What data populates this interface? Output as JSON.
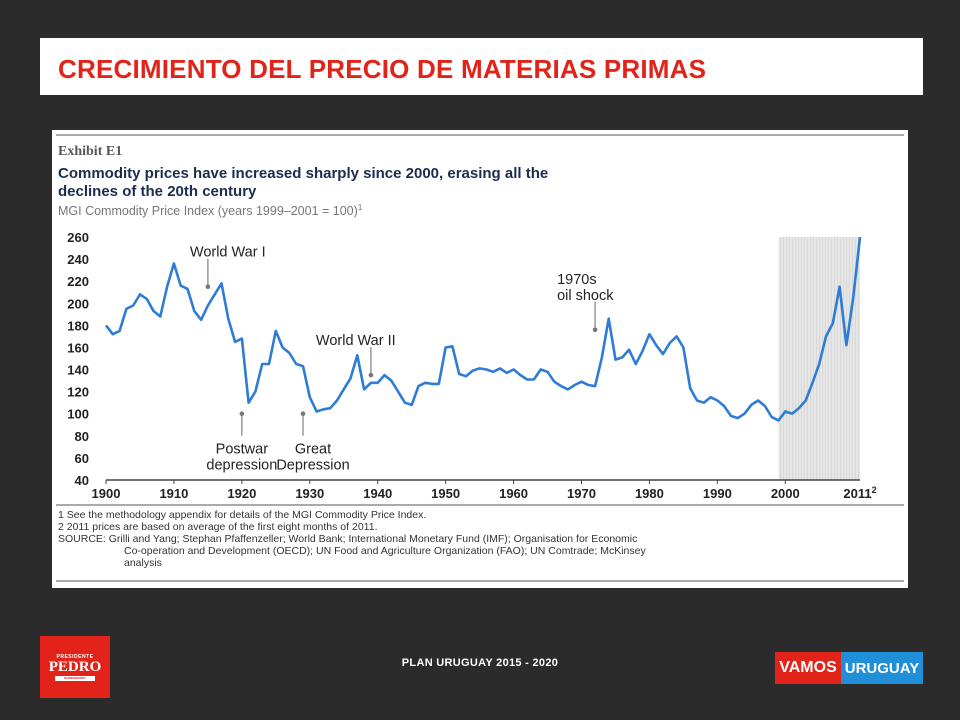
{
  "slide": {
    "title": "CRECIMIENTO DEL PRECIO DE MATERIAS PRIMAS",
    "footer": "PLAN URUGUAY 2015 - 2020",
    "logo_left": {
      "top": "PRESIDENTE",
      "name": "PEDRO",
      "bottom": "BORDABERRY"
    },
    "logo_right": {
      "part1": "VAMOS",
      "part2": "URUGUAY"
    }
  },
  "colors": {
    "accent_red": "#e2231a",
    "series_blue": "#2e7cd6",
    "logo_blue": "#1f8fd8"
  },
  "chart_data": {
    "type": "line",
    "exhibit": "Exhibit E1",
    "title": "Commodity prices have increased sharply since 2000, erasing all the declines of the 20th century",
    "title_lines": [
      "Commodity prices have increased sharply since 2000, erasing all the",
      "declines of the 20th century"
    ],
    "subtitle": "MGI Commodity Price Index (years 1999–2001 = 100)",
    "subtitle_sup": "1",
    "xlim": [
      1900,
      2011
    ],
    "ylim": [
      40,
      260
    ],
    "x_ticks": [
      "1900",
      "1910",
      "1920",
      "1930",
      "1940",
      "1950",
      "1960",
      "1970",
      "1980",
      "1990",
      "2000"
    ],
    "x_last_tick": "2011",
    "x_last_tick_sup": "2",
    "y_ticks": [
      "260",
      "240",
      "220",
      "200",
      "180",
      "160",
      "140",
      "120",
      "100",
      "80",
      "60",
      "40"
    ],
    "shaded_region": [
      1999,
      2011
    ],
    "annotations": [
      {
        "lines": [
          "World War I"
        ],
        "x": 1915,
        "y": 215
      },
      {
        "lines": [
          "World War II"
        ],
        "x": 1939,
        "y": 135
      },
      {
        "lines": [
          "Postwar",
          "depression"
        ],
        "x": 1920,
        "y": 100
      },
      {
        "lines": [
          "Great",
          "Depression"
        ],
        "x": 1929,
        "y": 100
      },
      {
        "lines": [
          "1970s",
          "oil shock"
        ],
        "x": 1972,
        "y": 176
      }
    ],
    "series": [
      {
        "x": [
          1900,
          1901,
          1902,
          1903,
          1904,
          1905,
          1906,
          1907,
          1908,
          1909,
          1910,
          1911,
          1912,
          1913,
          1914,
          1915,
          1916,
          1917,
          1918,
          1919,
          1920,
          1921,
          1922,
          1923,
          1924,
          1925,
          1926,
          1927,
          1928,
          1929,
          1930,
          1931,
          1932,
          1933,
          1934,
          1935,
          1936,
          1937,
          1938,
          1939,
          1940,
          1941,
          1942,
          1943,
          1944,
          1945,
          1946,
          1947,
          1948,
          1949,
          1950,
          1951,
          1952,
          1953,
          1954,
          1955,
          1956,
          1957,
          1958,
          1959,
          1960,
          1961,
          1962,
          1963,
          1964,
          1965,
          1966,
          1967,
          1968,
          1969,
          1970,
          1971,
          1972,
          1973,
          1974,
          1975,
          1976,
          1977,
          1978,
          1979,
          1980,
          1981,
          1982,
          1983,
          1984,
          1985,
          1986,
          1987,
          1988,
          1989,
          1990,
          1991,
          1992,
          1993,
          1994,
          1995,
          1996,
          1997,
          1998,
          1999,
          2000,
          2001,
          2002,
          2003,
          2004,
          2005,
          2006,
          2007,
          2008,
          2009,
          2010,
          2011
        ],
        "values": [
          180,
          172,
          175,
          195,
          198,
          208,
          204,
          193,
          188,
          215,
          236,
          216,
          213,
          193,
          185,
          198,
          208,
          218,
          186,
          165,
          168,
          110,
          120,
          145,
          145,
          175,
          160,
          155,
          145,
          143,
          115,
          102,
          104,
          105,
          112,
          122,
          132,
          153,
          122,
          128,
          128,
          135,
          130,
          120,
          110,
          108,
          125,
          128,
          127,
          127,
          160,
          161,
          136,
          134,
          139,
          141,
          140,
          138,
          141,
          137,
          140,
          135,
          131,
          131,
          140,
          138,
          129,
          125,
          122,
          126,
          129,
          126,
          125,
          151,
          186,
          149,
          151,
          158,
          145,
          157,
          172,
          162,
          154,
          164,
          170,
          160,
          123,
          112,
          110,
          115,
          112,
          107,
          98,
          96,
          100,
          108,
          112,
          107,
          97,
          94,
          102,
          100,
          105,
          112,
          128,
          145,
          170,
          182,
          215,
          162,
          205,
          260
        ]
      }
    ],
    "notes": [
      "1  See the methodology appendix for details of the MGI Commodity Price Index.",
      "2  2011 prices are based on average of the first eight months of 2011."
    ],
    "source_lines": [
      "SOURCE: Grilli and Yang; Stephan Pfaffenzeller; World Bank; International Monetary Fund (IMF); Organisation for Economic",
      "Co-operation and Development (OECD); UN Food and Agriculture Organization (FAO); UN Comtrade; McKinsey",
      "analysis"
    ]
  }
}
